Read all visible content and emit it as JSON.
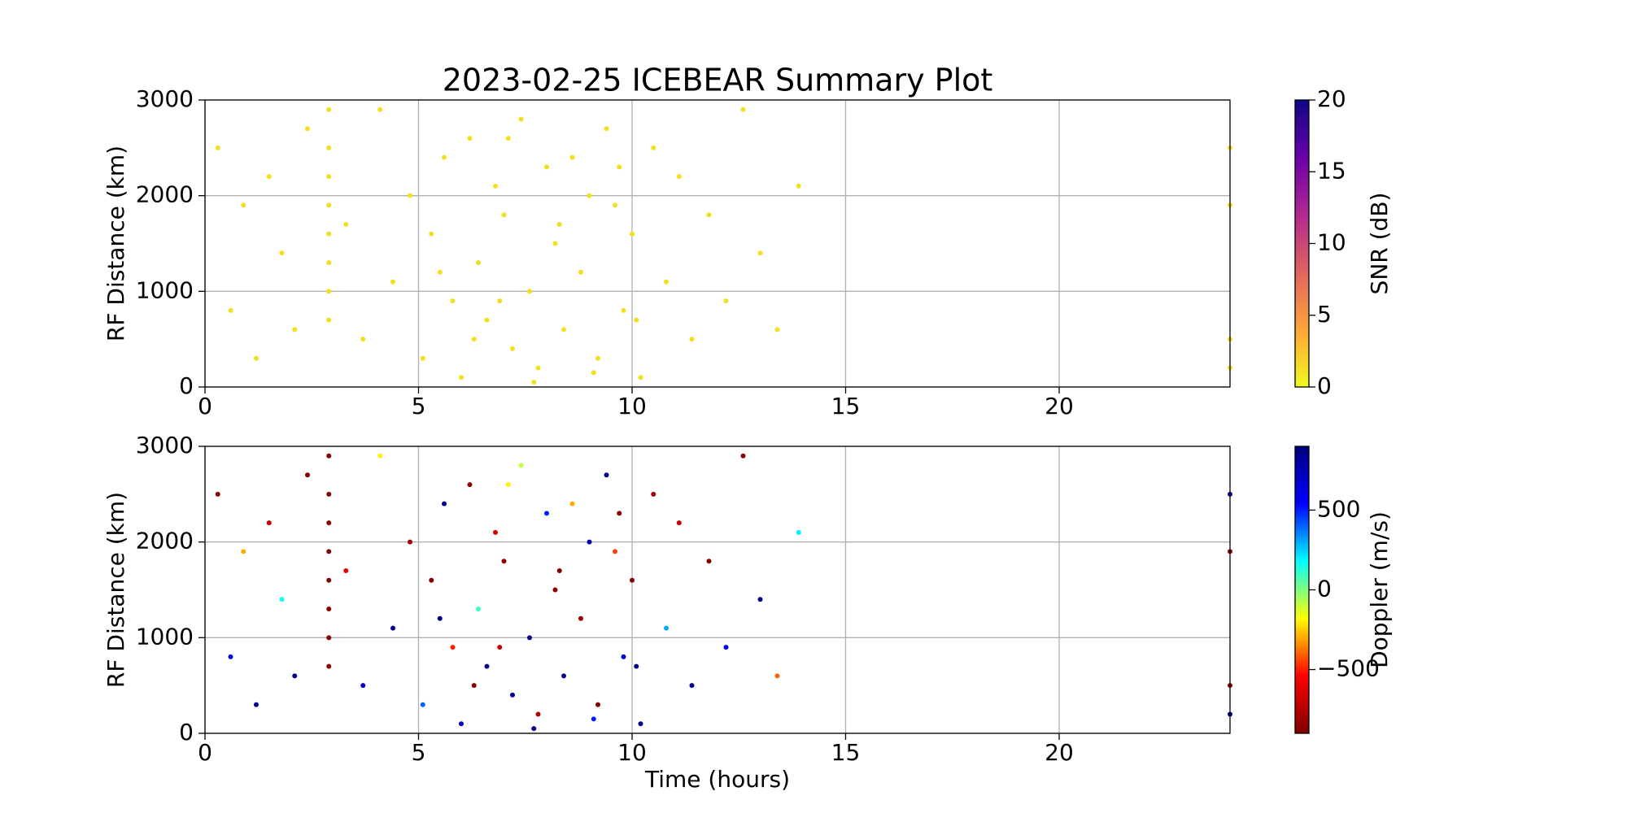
{
  "chart_data": [
    {
      "type": "scatter",
      "title": "2023-02-25 ICEBEAR Summary Plot",
      "ylabel": "RF Distance (km)",
      "xlim": [
        0,
        24
      ],
      "ylim": [
        0,
        3000
      ],
      "xticks": [
        0,
        5,
        10,
        15,
        20
      ],
      "yticks": [
        0,
        1000,
        2000,
        3000
      ],
      "grid": true,
      "color": "#f3e01c",
      "x": [
        0.3,
        0.6,
        0.9,
        1.2,
        1.5,
        1.8,
        2.1,
        2.4,
        3.3,
        3.7,
        4.1,
        4.4,
        4.8,
        5.1,
        5.3,
        5.6,
        5.8,
        6.0,
        6.2,
        6.4,
        6.6,
        6.8,
        7.0,
        7.2,
        7.4,
        7.6,
        7.8,
        8.0,
        8.2,
        8.4,
        8.6,
        8.8,
        9.0,
        9.2,
        9.4,
        9.6,
        9.8,
        10.0,
        10.2,
        10.5,
        10.8,
        11.1,
        11.4,
        11.8,
        12.2,
        12.6,
        13.0,
        13.4,
        13.9,
        2.9,
        2.9,
        2.9,
        2.9,
        2.9,
        2.9,
        2.9,
        2.9,
        24,
        24,
        24,
        24,
        5.5,
        6.3,
        7.1,
        7.7,
        8.3,
        9.1,
        9.7,
        10.1,
        6.9
      ],
      "y": [
        2500,
        800,
        1900,
        300,
        2200,
        1400,
        600,
        2700,
        1700,
        500,
        2900,
        1100,
        2000,
        300,
        1600,
        2400,
        900,
        100,
        2600,
        1300,
        700,
        2100,
        1800,
        400,
        2800,
        1000,
        200,
        2300,
        1500,
        600,
        2400,
        1200,
        2000,
        300,
        2700,
        1900,
        800,
        1600,
        100,
        2500,
        1100,
        2200,
        500,
        1800,
        900,
        2900,
        1400,
        600,
        2100,
        700,
        1000,
        1300,
        1600,
        1900,
        2200,
        2500,
        2900,
        200,
        500,
        1900,
        2500,
        1200,
        500,
        2600,
        50,
        1700,
        150,
        2300,
        700,
        900
      ],
      "colorbar": {
        "label": "SNR (dB)",
        "lim": [
          0,
          20
        ],
        "ticks": [
          0,
          5,
          10,
          15,
          20
        ],
        "colormap": "plasma_r"
      }
    },
    {
      "type": "scatter",
      "ylabel": "RF Distance (km)",
      "xlabel": "Time (hours)",
      "xlim": [
        0,
        24
      ],
      "ylim": [
        0,
        3000
      ],
      "xticks": [
        0,
        5,
        10,
        15,
        20
      ],
      "yticks": [
        0,
        1000,
        2000,
        3000
      ],
      "grid": true,
      "x": [
        0.3,
        0.6,
        0.9,
        1.2,
        1.5,
        1.8,
        2.1,
        2.4,
        3.3,
        3.7,
        4.1,
        4.4,
        4.8,
        5.1,
        5.3,
        5.6,
        5.8,
        6.0,
        6.2,
        6.4,
        6.6,
        6.8,
        7.0,
        7.2,
        7.4,
        7.6,
        7.8,
        8.0,
        8.2,
        8.4,
        8.6,
        8.8,
        9.0,
        9.2,
        9.4,
        9.6,
        9.8,
        10.0,
        10.2,
        10.5,
        10.8,
        11.1,
        11.4,
        11.8,
        12.2,
        12.6,
        13.0,
        13.4,
        13.9,
        2.9,
        2.9,
        2.9,
        2.9,
        2.9,
        2.9,
        2.9,
        2.9,
        24,
        24,
        24,
        24,
        5.5,
        6.3,
        7.1,
        7.7,
        8.3,
        9.1,
        9.7,
        10.1,
        6.9
      ],
      "y": [
        2500,
        800,
        1900,
        300,
        2200,
        1400,
        600,
        2700,
        1700,
        500,
        2900,
        1100,
        2000,
        300,
        1600,
        2400,
        900,
        100,
        2600,
        1300,
        700,
        2100,
        1800,
        400,
        2800,
        1000,
        200,
        2300,
        1500,
        600,
        2400,
        1200,
        2000,
        300,
        2700,
        1900,
        800,
        1600,
        100,
        2500,
        1100,
        2200,
        500,
        1800,
        900,
        2900,
        1400,
        600,
        2100,
        700,
        1000,
        1300,
        1600,
        1900,
        2200,
        2500,
        2900,
        200,
        500,
        1900,
        2500,
        1200,
        500,
        2600,
        50,
        1700,
        150,
        2300,
        700,
        900
      ],
      "c": [
        -850,
        600,
        -300,
        820,
        -700,
        150,
        880,
        -880,
        -600,
        700,
        -200,
        840,
        -800,
        400,
        -890,
        860,
        -500,
        750,
        -850,
        100,
        890,
        -650,
        -870,
        820,
        -100,
        880,
        -760,
        500,
        -880,
        860,
        -300,
        -820,
        780,
        -880,
        880,
        -450,
        650,
        -890,
        870,
        -800,
        300,
        -700,
        850,
        -880,
        600,
        -850,
        880,
        -400,
        200,
        -880,
        -880,
        -880,
        -880,
        -880,
        -880,
        -880,
        -880,
        880,
        -850,
        -880,
        800,
        880,
        -870,
        -200,
        850,
        -880,
        500,
        -860,
        880,
        -700
      ],
      "colorbar": {
        "label": "Doppler (m/s)",
        "lim": [
          -900,
          900
        ],
        "ticks": [
          {
            "value": -500,
            "label": "−500"
          },
          0,
          500
        ],
        "colormap": "jet_r"
      }
    }
  ]
}
